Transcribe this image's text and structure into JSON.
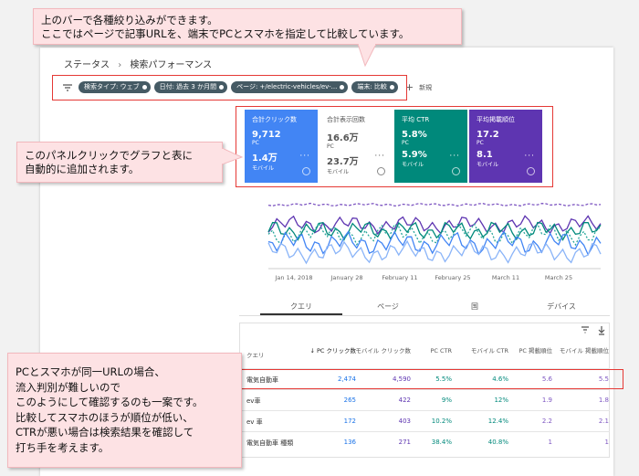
{
  "callouts": {
    "top": [
      "上のバーで各種絞り込みができます。",
      "ここではページで記事URLを、端末でPCとスマホを指定して比較しています。"
    ],
    "panel": [
      "このパネルクリックでグラフと表に",
      "自動的に追加されます。"
    ],
    "table": [
      "PCとスマホが同一URLの場合、",
      "流入判別が難しいので",
      "このようにして確認するのも一案です。",
      "比較してスマホのほうが順位が低い、",
      "CTRが悪い場合は検索結果を確認して",
      "打ち手を考えます。"
    ]
  },
  "breadcrumb": [
    "ステータス",
    "検索パフォーマンス"
  ],
  "filters": [
    "検索タイプ: ウェブ",
    "日付: 過去 3 か月間",
    "ページ: +/electric-vehicles/ev-...",
    "端末: 比較"
  ],
  "new_filter": "新規",
  "metrics": [
    {
      "label": "合計クリック数",
      "pc_value": "9,712",
      "pc_label": "PC",
      "mobile_value": "1.4万",
      "mobile_label": "モバイル"
    },
    {
      "label": "合計表示回数",
      "pc_value": "16.6万",
      "pc_label": "PC",
      "mobile_value": "23.7万",
      "mobile_label": "モバイル"
    },
    {
      "label": "平均 CTR",
      "pc_value": "5.8%",
      "pc_label": "PC",
      "mobile_value": "5.9%",
      "mobile_label": "モバイル"
    },
    {
      "label": "平均掲載順位",
      "pc_value": "17.2",
      "pc_label": "PC",
      "mobile_value": "8.1",
      "mobile_label": "モバイル"
    }
  ],
  "chart_dates": [
    "Jan 14, 2018",
    "January 28",
    "February 11",
    "February 25",
    "March 11",
    "March 25"
  ],
  "tabs": [
    "クエリ",
    "ページ",
    "国",
    "デバイス"
  ],
  "table": {
    "header": [
      "クエリ",
      "↓ PC クリック数",
      "モバイル クリック数",
      "PC CTR",
      "モバイル CTR",
      "PC 掲載順位",
      "モバイル 掲載順位"
    ],
    "rows": [
      [
        "電気自動車",
        "2,474",
        "4,590",
        "5.5%",
        "4.6%",
        "5.6",
        "5.5"
      ],
      [
        "ev車",
        "265",
        "422",
        "9%",
        "12%",
        "1.9",
        "1.8"
      ],
      [
        "ev 車",
        "172",
        "403",
        "10.2%",
        "12.4%",
        "2.2",
        "2.1"
      ],
      [
        "電気自動車 種類",
        "136",
        "271",
        "38.4%",
        "40.8%",
        "1",
        "1"
      ]
    ]
  }
}
